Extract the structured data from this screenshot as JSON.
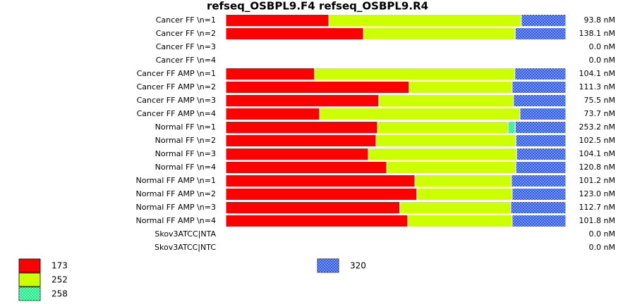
{
  "chart_data": {
    "type": "bar",
    "stacked": "percent",
    "orientation": "horizontal",
    "title": "refseq_OSBPL9.F4  refseq_OSBPL9.R4",
    "categories": [
      "Cancer FF \\n=1",
      "Cancer FF \\n=2",
      "Cancer FF \\n=3",
      "Cancer FF \\n=4",
      "Cancer FF AMP \\n=1",
      "Cancer FF AMP \\n=2",
      "Cancer FF AMP \\n=3",
      "Cancer FF AMP \\n=4",
      "Normal FF \\n=1",
      "Normal FF \\n=2",
      "Normal FF \\n=3",
      "Normal FF \\n=4",
      "Normal FF AMP \\n=1",
      "Normal FF AMP \\n=2",
      "Normal FF AMP \\n=3",
      "Normal FF AMP \\n=4",
      "Skov3ATCC|NTA",
      "Skov3ATCC|NTC"
    ],
    "series": [
      {
        "name": "173",
        "color": "#ff0000",
        "values": [
          30.3,
          40.5,
          0,
          0,
          26.1,
          53.9,
          45.0,
          27.6,
          44.6,
          44.2,
          41.9,
          47.3,
          55.6,
          56.2,
          51.2,
          53.5,
          0,
          0
        ]
      },
      {
        "name": "252",
        "color": "#ccff00",
        "values": [
          56.6,
          44.6,
          0,
          0,
          58.9,
          30.3,
          39.6,
          58.9,
          38.4,
          41.1,
          43.6,
          38.0,
          28.4,
          28.0,
          32.6,
          30.7,
          0,
          0
        ]
      },
      {
        "name": "258",
        "color": "#00ee77",
        "pattern": "crosshatch",
        "values": [
          0,
          0,
          0,
          0,
          0,
          0,
          0,
          0,
          2.1,
          0,
          0,
          0,
          0,
          0,
          0,
          0,
          0,
          0
        ]
      },
      {
        "name": "320",
        "color": "#1144ff",
        "pattern": "crosshatch",
        "values": [
          13.1,
          14.9,
          0,
          0,
          15.0,
          15.8,
          15.4,
          13.5,
          14.9,
          14.7,
          14.5,
          14.7,
          16.0,
          15.8,
          16.2,
          15.8,
          0,
          0
        ]
      }
    ],
    "totals": {
      "values": [
        93.8,
        138.1,
        0.0,
        0.0,
        104.1,
        111.3,
        75.5,
        73.7,
        253.2,
        102.5,
        104.1,
        120.8,
        101.2,
        123.0,
        112.7,
        101.8,
        0.0,
        0.0
      ],
      "value_labels": [
        "93.8 nM",
        "138.1 nM",
        "0.0 nM",
        "0.0 nM",
        "104.1 nM",
        "111.3 nM",
        "75.5 nM",
        "73.7 nM",
        "253.2 nM",
        "102.5 nM",
        "104.1 nM",
        "120.8 nM",
        "101.2 nM",
        "123.0 nM",
        "112.7 nM",
        "101.8 nM",
        "0.0 nM",
        "0.0 nM"
      ]
    }
  }
}
